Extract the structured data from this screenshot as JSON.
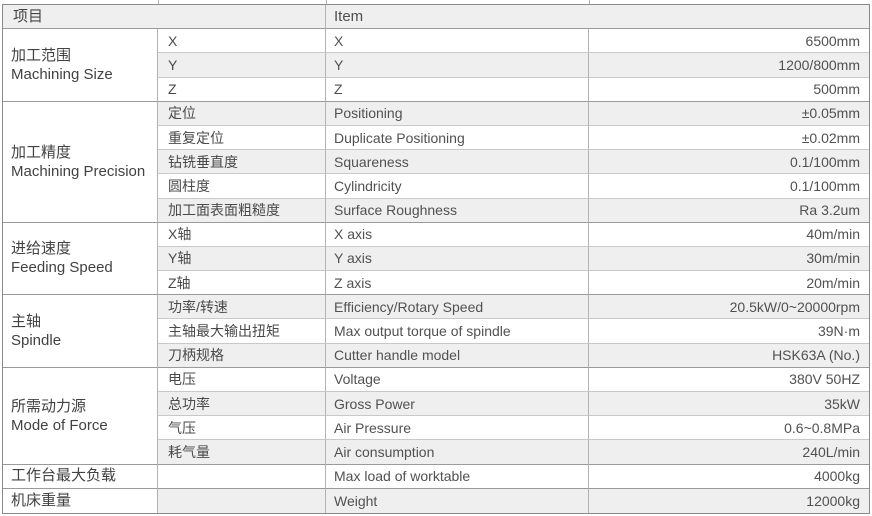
{
  "table": {
    "header": {
      "zh": "项目",
      "en": "Item"
    },
    "groups": [
      {
        "zh": "加工范围",
        "en": "Machining Size",
        "rows": [
          {
            "zh": "X",
            "en": "X",
            "value": "6500mm"
          },
          {
            "zh": "Y",
            "en": "Y",
            "value": "1200/800mm"
          },
          {
            "zh": "Z",
            "en": "Z",
            "value": "500mm"
          }
        ]
      },
      {
        "zh": "加工精度",
        "en": "Machining Precision",
        "rows": [
          {
            "zh": "定位",
            "en": "Positioning",
            "value": "±0.05mm"
          },
          {
            "zh": "重复定位",
            "en": "Duplicate Positioning",
            "value": "±0.02mm"
          },
          {
            "zh": "钻铣垂直度",
            "en": "Squareness",
            "value": "0.1/100mm"
          },
          {
            "zh": "圆柱度",
            "en": "Cylindricity",
            "value": "0.1/100mm"
          },
          {
            "zh": "加工面表面粗糙度",
            "en": "Surface Roughness",
            "value": "Ra 3.2um"
          }
        ]
      },
      {
        "zh": "进给速度",
        "en": "Feeding Speed",
        "rows": [
          {
            "zh": "X轴",
            "en": "X axis",
            "value": "40m/min"
          },
          {
            "zh": "Y轴",
            "en": "Y axis",
            "value": "30m/min"
          },
          {
            "zh": "Z轴",
            "en": "Z axis",
            "value": "20m/min"
          }
        ]
      },
      {
        "zh": "主轴",
        "en": "Spindle",
        "rows": [
          {
            "zh": "功率/转速",
            "en": "Efficiency/Rotary Speed",
            "value": "20.5kW/0~20000rpm"
          },
          {
            "zh": "主轴最大输出扭矩",
            "en": "Max output torque of spindle",
            "value": "39N·m"
          },
          {
            "zh": "刀柄规格",
            "en": "Cutter handle model",
            "value": "HSK63A (No.)"
          }
        ]
      },
      {
        "zh": "所需动力源",
        "en": "Mode of Force",
        "rows": [
          {
            "zh": "电压",
            "en": "Voltage",
            "value": "380V 50HZ"
          },
          {
            "zh": "总功率",
            "en": "Gross Power",
            "value": "35kW"
          },
          {
            "zh": "气压",
            "en": "Air Pressure",
            "value": "0.6~0.8MPa"
          },
          {
            "zh": "耗气量",
            "en": "Air consumption",
            "value": "240L/min"
          }
        ]
      }
    ],
    "footer_rows": [
      {
        "zh": "工作台最大负载",
        "en": "Max load of worktable",
        "value": "4000kg"
      },
      {
        "zh": "机床重量",
        "en": "Weight",
        "value": "12000kg"
      }
    ],
    "colors": {
      "band": "#efefef",
      "header_bg": "#efefef",
      "outer_border": "#8a8a8a",
      "group_line": "#9a9a9a",
      "row_line": "#c9c9c9",
      "column_line": "#b3b3b3",
      "text": "#4f4f4f"
    }
  }
}
